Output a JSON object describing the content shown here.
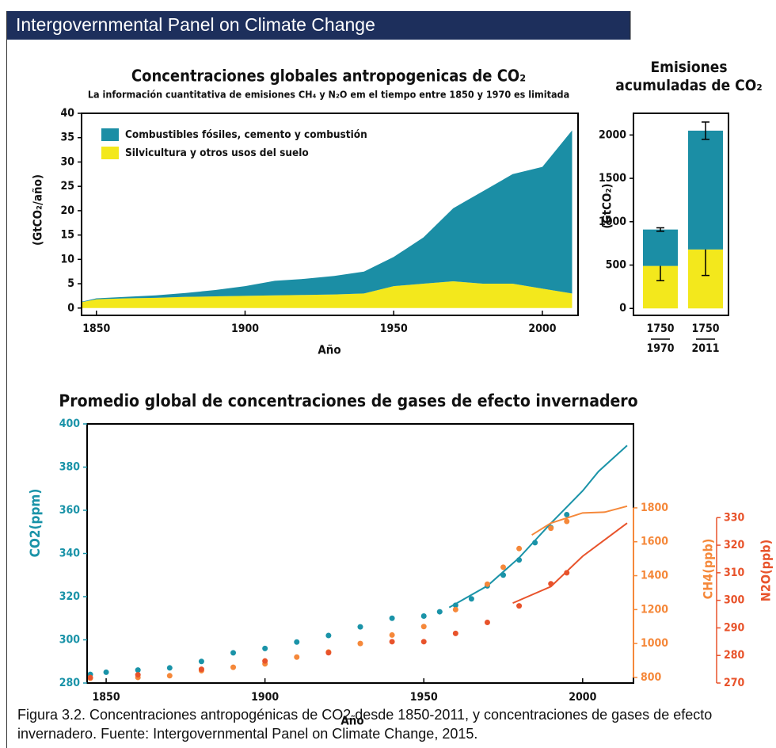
{
  "header": {
    "title": "Intergovernmental Panel on Climate Change"
  },
  "chart_data": [
    {
      "type": "area",
      "title": "Concentraciones globales antropogenicas de CO₂",
      "subtitle": "La información cuantitativa de emisiones CH₄ y N₂O em el tiempo entre 1850 y 1970 es limitada",
      "y_label": "(GtCO₂/año)",
      "x_label": "Año",
      "x": [
        1845,
        1850,
        1860,
        1870,
        1880,
        1890,
        1900,
        1910,
        1920,
        1930,
        1940,
        1950,
        1960,
        1970,
        1980,
        1990,
        2000,
        2010
      ],
      "series": [
        {
          "name": "Silvicultura y otros usos del suelo",
          "color": "#f3e81c",
          "values": [
            1.2,
            1.8,
            2.0,
            2.1,
            2.3,
            2.4,
            2.5,
            2.6,
            2.7,
            2.8,
            3.0,
            4.5,
            5.0,
            5.5,
            5.0,
            5.0,
            4.0,
            3.0
          ]
        },
        {
          "name": "Combustibles fósiles, cemento y combustión",
          "color": "#1b8ea5",
          "values": [
            0.1,
            0.2,
            0.3,
            0.5,
            0.8,
            1.3,
            2.0,
            3.0,
            3.3,
            3.8,
            4.5,
            6.0,
            9.5,
            15.0,
            19.0,
            22.5,
            25.0,
            33.5
          ]
        }
      ],
      "xlim": [
        1845,
        2012
      ],
      "xticks": [
        1850,
        1900,
        1950,
        2000
      ],
      "ylim": [
        -1.5,
        40
      ],
      "yticks": [
        0,
        5,
        10,
        15,
        20,
        25,
        30,
        35,
        40
      ]
    },
    {
      "type": "bar",
      "title": "Emisiones acumuladas de CO₂",
      "y_label": "(GtCO₂)",
      "categories": [
        [
          "1750",
          "1970"
        ],
        [
          "1750",
          "2011"
        ]
      ],
      "series": [
        {
          "color": "#f3e81c",
          "values": [
            490,
            680
          ],
          "errors": [
            170,
            300
          ]
        },
        {
          "color": "#1b8ea5",
          "values": [
            420,
            1370
          ],
          "errors": [
            20,
            100
          ]
        }
      ],
      "ylim": [
        -80,
        2250
      ],
      "yticks": [
        0,
        500,
        1000,
        1500,
        2000
      ]
    },
    {
      "type": "scatter",
      "title": "Promedio global de concentraciones de gases de efecto invernadero",
      "x_label": "Año",
      "y_label": "CO2(ppm)",
      "y2_label": "CH4(ppb)",
      "y3_label": "N2O(ppb)",
      "xlim": [
        1844,
        2016
      ],
      "xticks": [
        1850,
        1900,
        1950,
        2000
      ],
      "ylim": [
        280,
        400
      ],
      "yticks": [
        280,
        300,
        320,
        340,
        360,
        380,
        400
      ],
      "y_color": "#1a93a8",
      "y2lim": [
        767,
        2295
      ],
      "y2ticks": [
        800,
        1000,
        1200,
        1400,
        1600,
        1800
      ],
      "y2_color": "#f5883a",
      "y3lim": [
        270,
        364
      ],
      "y3ticks": [
        270,
        280,
        290,
        300,
        310,
        320,
        330
      ],
      "y3_color": "#e8532b",
      "series": [
        {
          "style": "dots",
          "axis": "y",
          "color": "#1a93a8",
          "x": [
            1845,
            1850,
            1860,
            1870,
            1880,
            1890,
            1900,
            1910,
            1920,
            1930,
            1940,
            1950,
            1955,
            1960,
            1965,
            1970,
            1975,
            1980,
            1985,
            1990,
            1995
          ],
          "values": [
            284,
            285,
            286,
            287,
            290,
            294,
            296,
            299,
            302,
            306,
            310,
            311,
            313,
            316,
            319,
            325,
            330,
            337,
            345,
            352,
            358
          ]
        },
        {
          "style": "line",
          "axis": "y",
          "color": "#1a93a8",
          "x": [
            1958,
            1970,
            1980,
            1990,
            2000,
            2005,
            2014
          ],
          "values": [
            315,
            325,
            338,
            354,
            369,
            378,
            390
          ]
        },
        {
          "style": "dots",
          "axis": "y2",
          "color": "#f5883a",
          "x": [
            1845,
            1860,
            1870,
            1880,
            1890,
            1900,
            1910,
            1920,
            1930,
            1940,
            1950,
            1960,
            1970,
            1975,
            1980,
            1990,
            1995
          ],
          "values": [
            795,
            800,
            810,
            840,
            860,
            880,
            920,
            950,
            1000,
            1050,
            1100,
            1200,
            1350,
            1450,
            1560,
            1680,
            1720
          ]
        },
        {
          "style": "line",
          "axis": "y2",
          "color": "#f5883a",
          "x": [
            1984,
            1990,
            2000,
            2007,
            2014
          ],
          "values": [
            1640,
            1710,
            1770,
            1775,
            1810
          ]
        },
        {
          "style": "dots",
          "axis": "y3",
          "color": "#e8532b",
          "x": [
            1845,
            1860,
            1880,
            1900,
            1920,
            1940,
            1950,
            1960,
            1970,
            1980,
            1990,
            1995
          ],
          "values": [
            272,
            273,
            275,
            278,
            281,
            285,
            285,
            288,
            292,
            298,
            306,
            310
          ]
        },
        {
          "style": "line",
          "axis": "y3",
          "color": "#e8532b",
          "x": [
            1978,
            1990,
            2000,
            2014
          ],
          "values": [
            299,
            305,
            316,
            328
          ]
        }
      ]
    }
  ],
  "caption": "Figura 3.2. Concentraciones antropogénicas de CO2 desde 1850-2011, y concentraciones de gases de efecto invernadero. Fuente: Intergovernmental Panel on Climate Change, 2015."
}
